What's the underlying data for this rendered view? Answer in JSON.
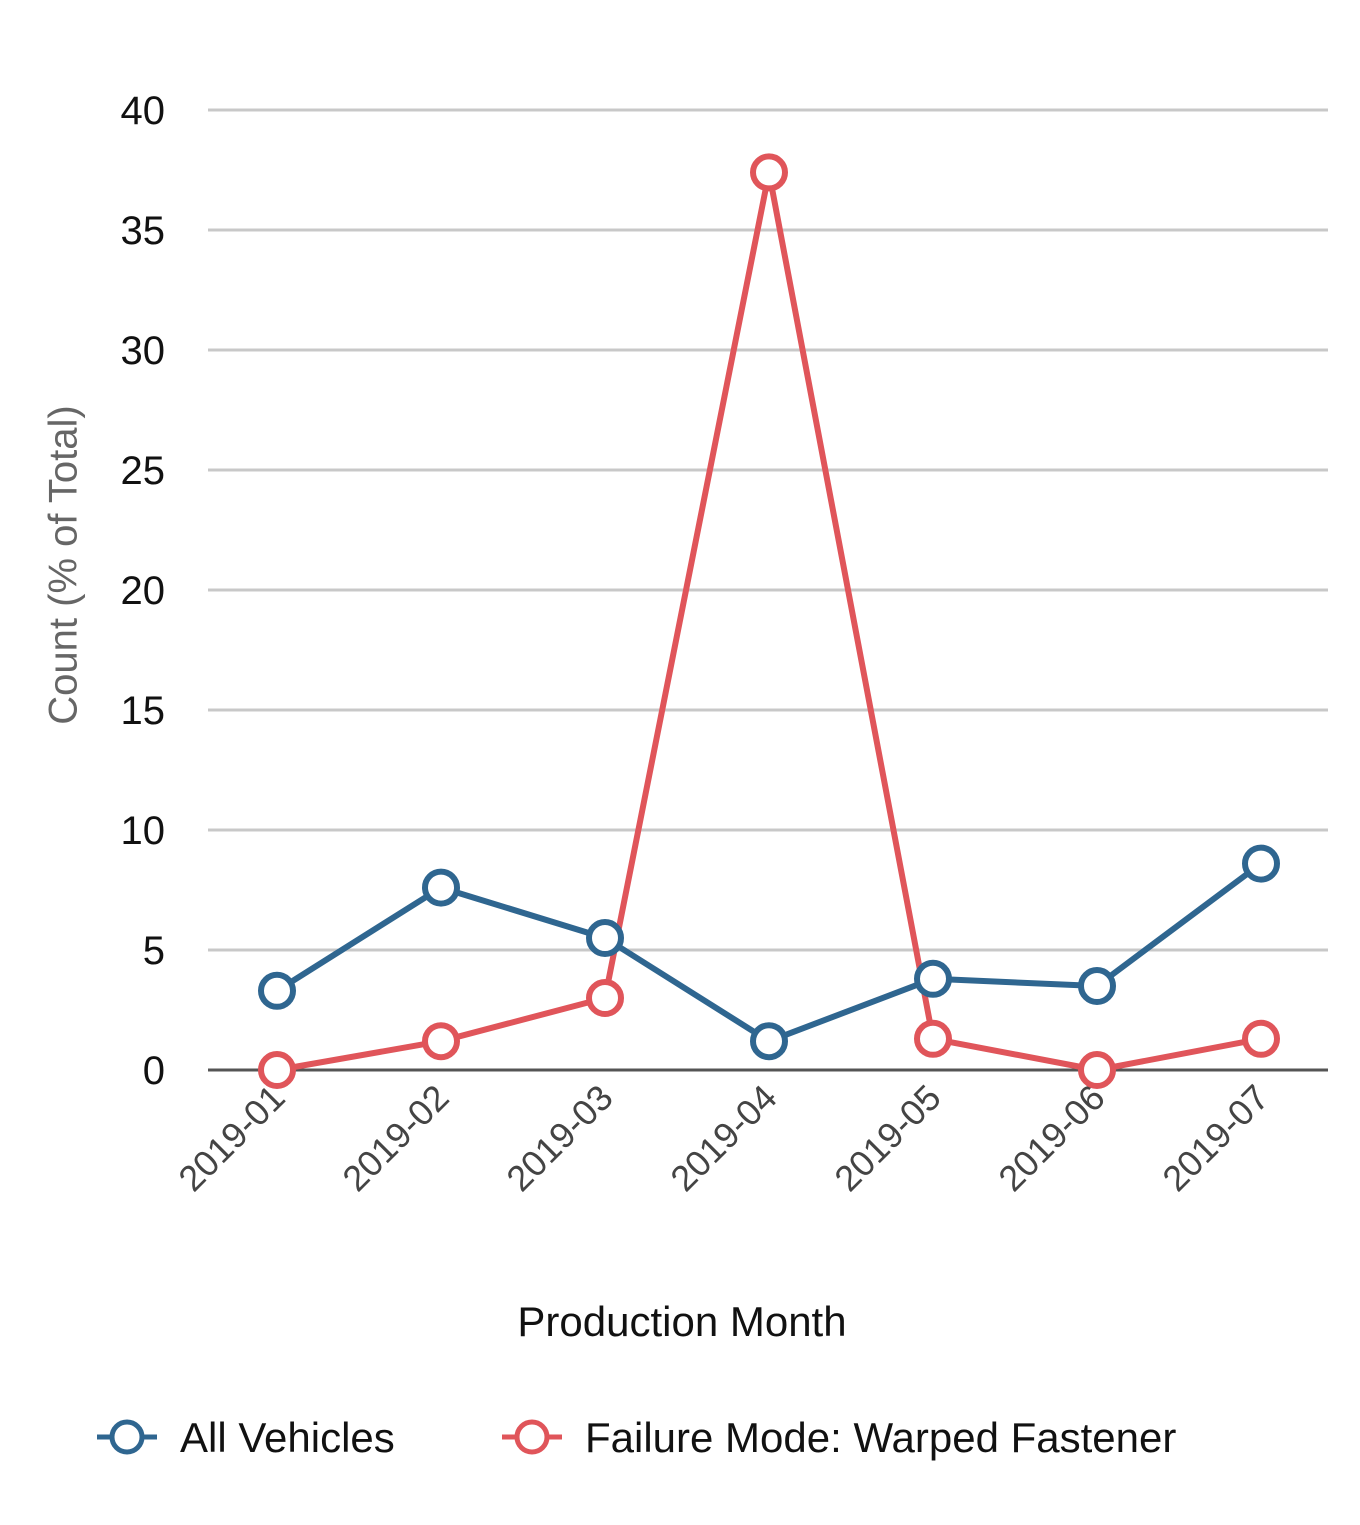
{
  "chart_data": {
    "type": "line",
    "categories": [
      "2019-01",
      "2019-02",
      "2019-03",
      "2019-04",
      "2019-05",
      "2019-06",
      "2019-07"
    ],
    "series": [
      {
        "name": "All Vehicles",
        "color": "#2f6690",
        "values": [
          3.3,
          7.6,
          5.5,
          1.2,
          3.8,
          3.5,
          8.6
        ]
      },
      {
        "name": "Failure Mode: Warped Fastener",
        "color": "#e0555a",
        "values": [
          0.0,
          1.2,
          3.0,
          37.4,
          1.3,
          0.0,
          1.3
        ]
      }
    ],
    "xlabel": "Production Month",
    "ylabel": "Count (% of Total)",
    "ylim": [
      0,
      40
    ],
    "yticks": [
      0,
      5,
      10,
      15,
      20,
      25,
      30,
      35,
      40
    ],
    "grid": true,
    "legend_position": "bottom"
  }
}
